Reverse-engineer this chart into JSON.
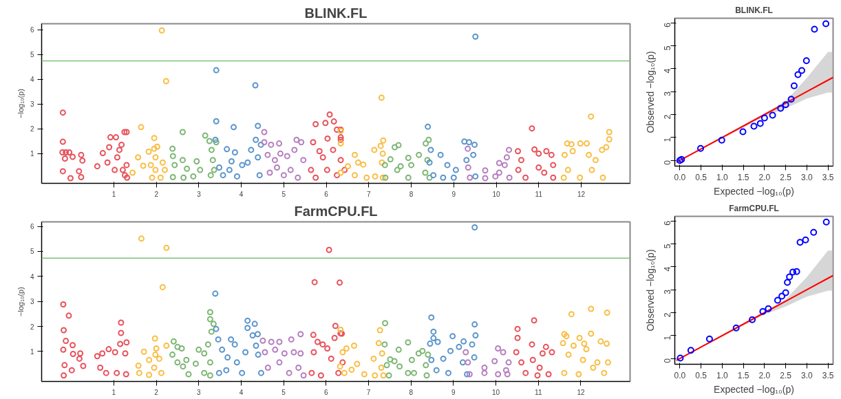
{
  "chart_data": [
    {
      "type": "scatter",
      "title": "BLINK.FL",
      "ylabel": "−log₁₀(p)",
      "xlim": [
        -0.7,
        13.15
      ],
      "ylim": [
        -0.2,
        6.25
      ],
      "marker": "circle",
      "grid": false,
      "xticks": [
        1,
        2,
        3,
        4,
        5,
        6,
        7,
        8,
        9,
        10,
        11,
        12
      ],
      "yticks": [
        1,
        2,
        3,
        4,
        5,
        6
      ],
      "ref_lines": [
        {
          "axis": "y",
          "value": 4.75,
          "color": "#7cc47a"
        }
      ],
      "series": [
        {
          "color": "#e8525b",
          "x": [
            -0.2,
            -0.2,
            -0.21,
            -0.13,
            -0.05,
            -0.15,
            0.03,
            0.23,
            0.26,
            -0.2,
            -0.02,
            0.18,
            0.23,
            0.61,
            0.74,
            0.85,
            0.89,
            0.92,
            1.02,
            1.05,
            1.08,
            1.13,
            1.18,
            1.25,
            1.26,
            1.3,
            1.3,
            1.31,
            1.21
          ],
          "values": [
            2.66,
            1.48,
            1.05,
            1.05,
            1.05,
            0.8,
            0.87,
            0.95,
            0.72,
            0.29,
            0.01,
            0.29,
            0.05,
            0.49,
            1.02,
            0.64,
            1.26,
            1.66,
            0.34,
            1.66,
            0.85,
            1.15,
            1.36,
            1.87,
            0.13,
            1.87,
            0.54,
            0.03,
            0.34
          ]
        },
        {
          "color": "#f9be45",
          "x": [
            1.64,
            1.95,
            2.13,
            2.23,
            1.57,
            1.82,
            1.95,
            2.02,
            1.98,
            1.44,
            1.69,
            1.87,
            1.98,
            1.9,
            2.1,
            2.15,
            2.2
          ],
          "values": [
            2.07,
            1.63,
            5.98,
            3.93,
            0.85,
            1.08,
            1.2,
            1.28,
            0.85,
            0.23,
            0.51,
            0.54,
            0.34,
            0.03,
            0.03,
            0.64,
            0.34
          ]
        },
        {
          "color": "#7cb773",
          "x": [
            2.62,
            3.15,
            2.38,
            2.39,
            2.43,
            2.39,
            2.62,
            2.72,
            2.64,
            2.87,
            2.95,
            3.03,
            3.25,
            3.3,
            3.33,
            3.28,
            3.36,
            3.41
          ],
          "values": [
            1.87,
            1.73,
            1.2,
            0.9,
            0.54,
            0.05,
            0.74,
            0.39,
            0.03,
            0.08,
            0.69,
            0.34,
            1.51,
            1.15,
            0.74,
            0.13,
            0.34,
            1.46
          ]
        },
        {
          "color": "#5b95cc",
          "x": [
            3.41,
            3.41,
            3.82,
            4.33,
            4.39,
            3.39,
            3.66,
            3.85,
            3.48,
            3.57,
            3.72,
            3.77,
            3.9,
            4.02,
            4.15,
            4.23,
            4.34,
            4.39,
            4.43,
            4.46
          ],
          "values": [
            4.37,
            2.31,
            2.07,
            3.76,
            2.12,
            1.56,
            1.18,
            1.05,
            0.44,
            0.13,
            0.34,
            0.69,
            0.08,
            0.54,
            0.64,
            1.15,
            1.56,
            0.85,
            0.13,
            1.36
          ]
        },
        {
          "color": "#b57fc0",
          "x": [
            4.54,
            4.54,
            4.7,
            4.89,
            5.3,
            5.41,
            4.62,
            4.79,
            4.92,
            5.08,
            5.25,
            4.67,
            5.0,
            5.16,
            5.33,
            5.46,
            4.84
          ],
          "values": [
            1.87,
            1.46,
            1.36,
            1.41,
            1.56,
            1.46,
            0.95,
            0.74,
            1.0,
            0.9,
            1.15,
            0.23,
            0.13,
            0.34,
            0.03,
            0.74,
            0.44
          ]
        },
        {
          "color": "#e8525b",
          "x": [
            6.08,
            5.98,
            6.18,
            5.75,
            6.03,
            6.25,
            6.34,
            5.69,
            5.84,
            5.64,
            5.75,
            5.92,
            6.02,
            6.16,
            6.25,
            6.34,
            6.43,
            6.34,
            6.34
          ],
          "values": [
            2.58,
            2.24,
            2.3,
            2.19,
            1.61,
            1.97,
            1.56,
            1.46,
            1.1,
            0.34,
            0.03,
            0.85,
            0.34,
            1.15,
            0.13,
            0.74,
            0.34,
            1.97,
            1.66
          ]
        },
        {
          "color": "#f9be45",
          "x": [
            6.34,
            6.34,
            6.34,
            6.51,
            6.67,
            6.75,
            6.87,
            6.67,
            6.95,
            7.13,
            7.3,
            7.28,
            7.34,
            7.33,
            7.31,
            7.15,
            7.33
          ],
          "values": [
            1.92,
            1.41,
            0.23,
            0.49,
            0.95,
            0.64,
            0.56,
            0.13,
            0.03,
            1.15,
            3.26,
            1.31,
            1.53,
            1.0,
            0.64,
            0.08,
            0.03
          ]
        },
        {
          "color": "#7cb773",
          "x": [
            7.38,
            7.39,
            7.51,
            7.61,
            7.7,
            7.67,
            7.75,
            7.93,
            8.0,
            7.93,
            8.18,
            8.34,
            8.41,
            8.38,
            8.33,
            8.43
          ],
          "values": [
            0.54,
            0.03,
            0.77,
            1.26,
            1.34,
            0.34,
            0.49,
            0.83,
            0.54,
            0.03,
            0.95,
            1.41,
            1.56,
            0.74,
            0.23,
            0.03
          ]
        },
        {
          "color": "#5b95cc",
          "x": [
            8.39,
            8.46,
            8.43,
            8.52,
            8.69,
            8.85,
            9.05,
            9.25,
            9.36,
            9.49,
            9.51,
            9.46,
            9.3,
            9.51,
            9.0,
            8.75
          ],
          "values": [
            2.09,
            1.15,
            0.64,
            0.13,
            0.95,
            0.54,
            0.34,
            1.49,
            1.46,
            1.36,
            5.73,
            0.95,
            0.74,
            0.08,
            0.03,
            0.03
          ]
        },
        {
          "color": "#b57fc0",
          "x": [
            9.33,
            9.34,
            9.38,
            9.74,
            9.74,
            9.98,
            10.07,
            10.07,
            10.2,
            10.25,
            10.3,
            10.31
          ],
          "values": [
            1.2,
            0.44,
            0.03,
            0.32,
            0.01,
            0.08,
            0.62,
            0.23,
            0.54,
            0.85,
            1.15,
            0.03
          ]
        },
        {
          "color": "#e8525b",
          "x": [
            10.84,
            10.51,
            10.52,
            10.59,
            10.69,
            10.9,
            11.0,
            11.0,
            11.18,
            11.3,
            11.13,
            11.34,
            11.34
          ],
          "values": [
            2.02,
            1.1,
            0.34,
            0.74,
            0.03,
            1.17,
            1.0,
            0.44,
            1.1,
            0.95,
            0.23,
            0.54,
            0.03
          ]
        },
        {
          "color": "#f9be45",
          "x": [
            12.23,
            12.66,
            12.66,
            11.67,
            11.77,
            11.98,
            12.13,
            11.61,
            11.8,
            12.18,
            12.34,
            12.49,
            12.59,
            11.69,
            11.97,
            12.25,
            12.51,
            11.59
          ],
          "values": [
            2.5,
            1.87,
            1.58,
            1.41,
            1.38,
            1.41,
            1.41,
            0.95,
            1.1,
            0.95,
            0.74,
            1.15,
            1.26,
            0.34,
            0.03,
            0.34,
            0.03,
            0.03
          ]
        }
      ]
    },
    {
      "type": "scatter",
      "title": "BLINK.FL",
      "xlabel": "Expected −log₁₀(p)",
      "ylabel": "Observed −log₁₀(p)",
      "xlim": [
        -0.12,
        3.62
      ],
      "ylim": [
        -0.25,
        6.2
      ],
      "grid": false,
      "xticks": [
        {
          "value": 0,
          "label": "0.0"
        },
        {
          "value": 0.5,
          "label": "0.5"
        },
        {
          "value": 1,
          "label": "1.0"
        },
        {
          "value": 1.5,
          "label": "1.5"
        },
        {
          "value": 2,
          "label": "2.0"
        },
        {
          "value": 2.5,
          "label": "2.5"
        },
        {
          "value": 3,
          "label": "3.0"
        },
        {
          "value": 3.5,
          "label": "3.5"
        }
      ],
      "yticks": [
        0,
        1,
        2,
        3,
        4,
        5,
        6
      ],
      "series": [
        {
          "type": "line",
          "color": "#ff0000",
          "x": [
            -0.08,
            0,
            1,
            2,
            2.5,
            3,
            3.5,
            3.62
          ],
          "values": [
            -0.08,
            0,
            1,
            2,
            2.5,
            3,
            3.5,
            3.62
          ],
          "lower": [
            -0.08,
            0,
            0.95,
            1.92,
            2.27,
            2.7,
            2.96,
            2.96
          ],
          "upper": [
            -0.08,
            0,
            1.05,
            2.05,
            2.58,
            3.6,
            4.73,
            4.73
          ]
        },
        {
          "color": "#0000ff",
          "marker": "circle",
          "x": [
            3.45,
            3.18,
            2.99,
            2.88,
            2.79,
            2.7,
            2.63,
            2.5,
            2.38,
            2.19,
            2.0,
            1.9,
            1.75,
            1.49,
            0.99,
            0.49,
            0.04,
            0
          ],
          "values": [
            5.96,
            5.72,
            4.35,
            3.92,
            3.74,
            3.25,
            2.67,
            2.43,
            2.27,
            1.97,
            1.85,
            1.61,
            1.49,
            1.25,
            0.88,
            0.52,
            0.04,
            0
          ]
        }
      ]
    },
    {
      "type": "scatter",
      "title": "FarmCPU.FL",
      "ylabel": "−log₁₀(p)",
      "xlim": [
        -0.7,
        13.16
      ],
      "ylim": [
        -0.2,
        6.18
      ],
      "marker": "circle",
      "grid": false,
      "xticks": [
        1,
        2,
        3,
        4,
        5,
        6,
        7,
        8,
        9,
        10,
        11,
        12
      ],
      "yticks": [
        1,
        2,
        3,
        4,
        5,
        6
      ],
      "ref_lines": [
        {
          "axis": "y",
          "value": 4.73,
          "color": "#7cc47a"
        }
      ],
      "series": [
        {
          "color": "#e8525b",
          "x": [
            -0.19,
            -0.06,
            -0.18,
            -0.13,
            -0.19,
            0.03,
            0.04,
            0.21,
            0.19,
            0.28,
            -0.16,
            -0.18,
            0.01,
            0.61,
            0.73,
            0.88,
            1.03,
            1.17,
            1.17,
            1.15,
            1.3,
            1.27,
            1.07,
            1.29,
            0.82,
            0.68
          ],
          "values": [
            2.88,
            2.43,
            1.85,
            1.42,
            1.07,
            1.25,
            0.9,
            0.92,
            0.71,
            0.42,
            0.45,
            0.04,
            0.25,
            0.81,
            0.92,
            1.09,
            0.97,
            2.15,
            1.74,
            1.3,
            1.36,
            0.92,
            0.14,
            0.09,
            0.14,
            0.35
          ]
        },
        {
          "color": "#f9be45",
          "x": [
            1.65,
            2.24,
            2.15,
            1.97,
            1.71,
            2.0,
            2.24,
            1.58,
            1.83,
            1.98,
            2.07,
            1.83,
            2.12,
            1.95,
            1.6
          ],
          "values": [
            5.51,
            5.14,
            3.57,
            1.52,
            0.99,
            1.12,
            1.23,
            0.43,
            0.66,
            0.87,
            0.71,
            0.06,
            0.14,
            0.35,
            0.14
          ]
        },
        {
          "color": "#7cb773",
          "x": [
            2.41,
            2.5,
            2.6,
            2.38,
            2.5,
            2.71,
            2.63,
            2.76,
            3.0,
            2.93,
            3.13,
            3.27,
            3.27,
            3.3,
            3.35,
            3.22,
            3.27,
            3.13,
            3.27
          ],
          "values": [
            1.4,
            1.18,
            1.12,
            0.87,
            0.56,
            0.66,
            0.4,
            0.09,
            1.07,
            0.51,
            0.92,
            2.57,
            2.29,
            1.79,
            2.1,
            1.28,
            0.56,
            0.14,
            0.04
          ]
        },
        {
          "color": "#5b95cc",
          "x": [
            3.39,
            3.41,
            3.46,
            3.55,
            3.68,
            3.76,
            3.85,
            3.48,
            3.65,
            3.9,
            4.02,
            4.15,
            4.15,
            4.32,
            4.27,
            4.39,
            4.35,
            4.4,
            4.47,
            4.1
          ],
          "values": [
            3.31,
            1.9,
            1.48,
            1.07,
            0.76,
            1.48,
            1.28,
            0.14,
            0.25,
            0.56,
            0.14,
            2.23,
            1.94,
            2.1,
            1.64,
            1.69,
            1.23,
            0.87,
            0.14,
            0.97
          ]
        },
        {
          "color": "#b57fc0",
          "x": [
            4.51,
            4.71,
            4.9,
            5.18,
            5.4,
            4.56,
            4.8,
            5.02,
            5.24,
            5.4,
            4.63,
            4.9,
            5.13,
            5.35,
            5.47
          ],
          "values": [
            1.43,
            1.38,
            1.38,
            1.48,
            1.69,
            0.97,
            1.07,
            0.92,
            0.97,
            0.92,
            0.35,
            0.56,
            0.14,
            0.35,
            0.04
          ]
        },
        {
          "color": "#e8525b",
          "x": [
            6.07,
            5.73,
            6.32,
            6.22,
            6.34,
            5.7,
            5.8,
            5.71,
            5.92,
            6.03,
            6.2,
            6.12,
            5.66,
            5.88,
            6.29,
            6.39,
            6.37
          ],
          "values": [
            5.06,
            3.77,
            3.75,
            2.02,
            1.72,
            1.66,
            1.38,
            0.97,
            1.28,
            1.12,
            1.54,
            0.71,
            0.14,
            0.04,
            0.14,
            0.56,
            1.71
          ]
        },
        {
          "color": "#f9be45",
          "x": [
            6.34,
            6.39,
            6.48,
            6.66,
            6.33,
            6.43,
            6.6,
            6.73,
            6.9,
            7.12,
            7.27,
            7.24,
            7.32,
            7.3,
            7.15,
            7.35
          ],
          "values": [
            1.87,
            0.97,
            1.12,
            1.23,
            0.4,
            0.14,
            0.27,
            0.5,
            0.09,
            0.71,
            1.85,
            1.33,
            0.92,
            0.35,
            0.04,
            0.04
          ]
        },
        {
          "color": "#7cb773",
          "x": [
            7.39,
            7.38,
            7.43,
            7.48,
            7.51,
            7.61,
            7.71,
            7.73,
            7.93,
            8.02,
            7.93,
            8.07,
            8.18,
            8.27,
            8.35,
            8.4,
            8.37
          ],
          "values": [
            2.13,
            1.28,
            0.45,
            0.04,
            0.68,
            0.61,
            1.07,
            0.4,
            1.36,
            0.66,
            0.14,
            0.14,
            0.92,
            1.02,
            0.45,
            0.87,
            0.04
          ]
        },
        {
          "color": "#5b95cc",
          "x": [
            8.48,
            8.53,
            8.53,
            8.63,
            8.45,
            8.48,
            8.6,
            8.76,
            8.93,
            8.98,
            9.13,
            9.24,
            9.22,
            9.44,
            9.5,
            9.5,
            9.52,
            9.49,
            8.88,
            9.32
          ],
          "values": [
            2.36,
            1.79,
            1.53,
            1.38,
            1.31,
            0.66,
            0.25,
            0.71,
            1.02,
            1.61,
            1.18,
            1.4,
            0.56,
            1.28,
            2.08,
            5.96,
            1.64,
            0.76,
            0.14,
            0.09
          ]
        },
        {
          "color": "#b57fc0",
          "x": [
            9.29,
            9.34,
            9.38,
            9.73,
            9.73,
            9.97,
            10.05,
            10.17,
            10.05,
            10.24,
            10.3,
            10.27
          ],
          "values": [
            0.97,
            0.56,
            0.09,
            0.35,
            0.14,
            0.61,
            1.12,
            0.97,
            0.09,
            0.25,
            0.56,
            0.09
          ]
        },
        {
          "color": "#e8525b",
          "x": [
            10.51,
            10.51,
            10.9,
            10.85,
            10.48,
            10.6,
            10.7,
            10.87,
            11.03,
            11.1,
            11.18,
            11.32,
            11.24,
            10.98
          ],
          "values": [
            1.9,
            1.54,
            2.24,
            1.28,
            0.97,
            0.56,
            0.14,
            0.66,
            0.35,
            0.92,
            1.18,
            0.97,
            0.09,
            0.04
          ]
        },
        {
          "color": "#f9be45",
          "x": [
            11.78,
            12.24,
            12.62,
            11.61,
            11.66,
            11.97,
            12.24,
            11.58,
            11.83,
            12.08,
            12.47,
            12.61,
            12.13,
            11.71,
            12.05,
            12.39,
            11.61,
            11.95,
            12.29,
            12.55,
            12.64
          ],
          "values": [
            2.49,
            2.7,
            2.55,
            1.69,
            1.61,
            1.54,
            1.71,
            1.33,
            1.23,
            1.31,
            1.4,
            1.31,
            1.09,
            0.87,
            0.66,
            0.56,
            0.14,
            0.09,
            0.35,
            0.14,
            0.56
          ]
        }
      ]
    },
    {
      "type": "scatter",
      "title": "FarmCPU.FL",
      "xlabel": "Expected −log₁₀(p)",
      "ylabel": "Observed −log₁₀(p)",
      "xlim": [
        -0.12,
        3.62
      ],
      "ylim": [
        -0.25,
        6.2
      ],
      "grid": false,
      "xticks": [
        {
          "value": 0,
          "label": "0.0"
        },
        {
          "value": 0.5,
          "label": "0.5"
        },
        {
          "value": 1,
          "label": "1.0"
        },
        {
          "value": 1.5,
          "label": "1.5"
        },
        {
          "value": 2,
          "label": "2.0"
        },
        {
          "value": 2.5,
          "label": "2.5"
        },
        {
          "value": 3,
          "label": "3.0"
        },
        {
          "value": 3.5,
          "label": "3.5"
        }
      ],
      "yticks": [
        0,
        1,
        2,
        3,
        4,
        5,
        6
      ],
      "series": [
        {
          "type": "line",
          "color": "#ff0000",
          "x": [
            -0.08,
            0,
            1,
            2,
            2.5,
            3,
            3.5,
            3.62
          ],
          "values": [
            -0.08,
            0,
            1,
            2,
            2.5,
            3,
            3.5,
            3.62
          ],
          "lower": [
            -0.08,
            0,
            0.95,
            1.92,
            2.27,
            2.7,
            2.96,
            2.96
          ],
          "upper": [
            -0.08,
            0,
            1.05,
            2.05,
            2.58,
            3.55,
            4.71,
            4.71
          ]
        },
        {
          "color": "#0000ff",
          "marker": "circle",
          "x": [
            3.46,
            3.16,
            2.97,
            2.84,
            2.76,
            2.67,
            2.59,
            2.54,
            2.5,
            2.41,
            2.31,
            2.09,
            1.96,
            1.71,
            1.33,
            0.7,
            0.26,
            0.01
          ],
          "values": [
            5.95,
            5.5,
            5.17,
            5.07,
            3.79,
            3.77,
            3.56,
            3.32,
            2.87,
            2.72,
            2.54,
            2.17,
            2.05,
            1.69,
            1.33,
            0.85,
            0.36,
            0.02
          ]
        }
      ]
    }
  ]
}
